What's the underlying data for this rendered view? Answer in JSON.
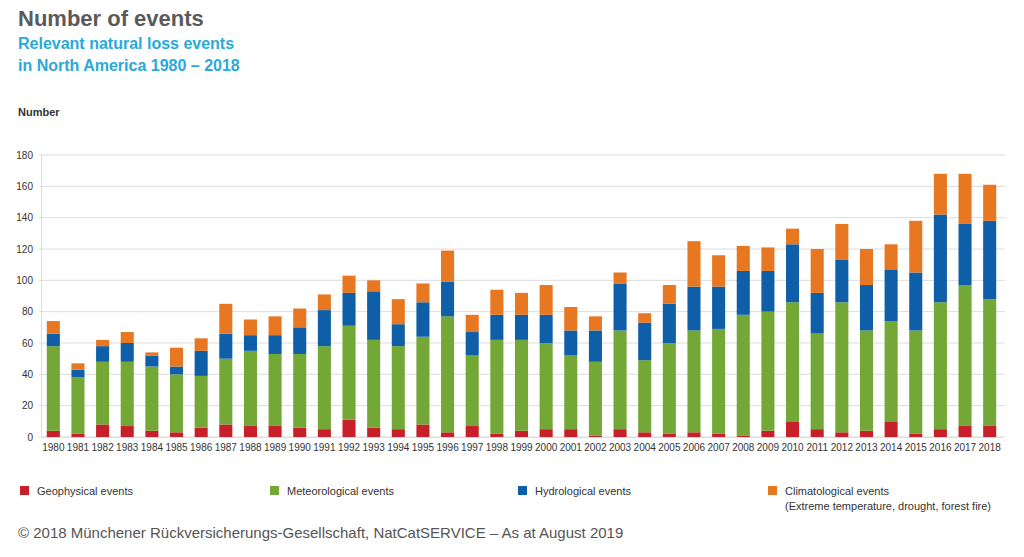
{
  "chart_data": {
    "type": "bar",
    "stacked": true,
    "grid": true,
    "title": "Number of events",
    "subtitle": [
      "Relevant natural loss events",
      "in North America 1980 – 2018"
    ],
    "y_label": "Number",
    "source": "© 2018 Münchener Rückversicherungs-Gesellschaft, NatCatSERVICE – As at August 2019",
    "categories": [
      "1980",
      "1981",
      "1982",
      "1983",
      "1984",
      "1985",
      "1986",
      "1987",
      "1988",
      "1989",
      "1990",
      "1991",
      "1992",
      "1993",
      "1994",
      "1995",
      "1996",
      "1997",
      "1998",
      "1999",
      "2000",
      "2001",
      "2002",
      "2003",
      "2004",
      "2005",
      "2006",
      "2007",
      "2008",
      "2009",
      "2010",
      "2011",
      "2012",
      "2013",
      "2014",
      "2015",
      "2016",
      "2017",
      "2018"
    ],
    "ylim": [
      0,
      180
    ],
    "yticks": [
      0,
      20,
      40,
      60,
      80,
      100,
      120,
      140,
      160,
      180
    ],
    "series": [
      {
        "name": "Geophysical events",
        "color": "#c8202a",
        "values": [
          4,
          2,
          8,
          7,
          4,
          3,
          6,
          8,
          7,
          7,
          6,
          5,
          11,
          6,
          5,
          8,
          3,
          7,
          2,
          4,
          5,
          5,
          1,
          5,
          3,
          2,
          3,
          2,
          1,
          4,
          10,
          5,
          3,
          4,
          10,
          2,
          5,
          7,
          7
        ]
      },
      {
        "name": "Meteorological events",
        "color": "#73a836",
        "values": [
          54,
          36,
          40,
          41,
          41,
          37,
          33,
          42,
          48,
          46,
          47,
          53,
          60,
          56,
          53,
          56,
          74,
          45,
          60,
          58,
          55,
          47,
          47,
          63,
          46,
          58,
          65,
          67,
          77,
          76,
          76,
          61,
          83,
          64,
          64,
          66,
          81,
          90,
          81
        ]
      },
      {
        "name": "Hydrological events",
        "color": "#0e5fa8",
        "values": [
          8,
          5,
          10,
          12,
          7,
          5,
          16,
          16,
          10,
          12,
          17,
          23,
          21,
          31,
          14,
          22,
          22,
          15,
          16,
          16,
          18,
          16,
          20,
          30,
          24,
          25,
          28,
          27,
          28,
          26,
          37,
          26,
          27,
          29,
          33,
          37,
          56,
          39,
          50
        ]
      },
      {
        "name": "Climatological events",
        "color": "#e87722",
        "note": "(Extreme temperature, drought, forest fire)",
        "values": [
          8,
          4,
          4,
          7,
          2,
          12,
          8,
          19,
          10,
          12,
          12,
          10,
          11,
          7,
          16,
          12,
          20,
          11,
          16,
          14,
          19,
          15,
          9,
          7,
          6,
          12,
          29,
          20,
          16,
          15,
          10,
          28,
          23,
          23,
          16,
          33,
          26,
          32,
          23
        ]
      }
    ]
  }
}
